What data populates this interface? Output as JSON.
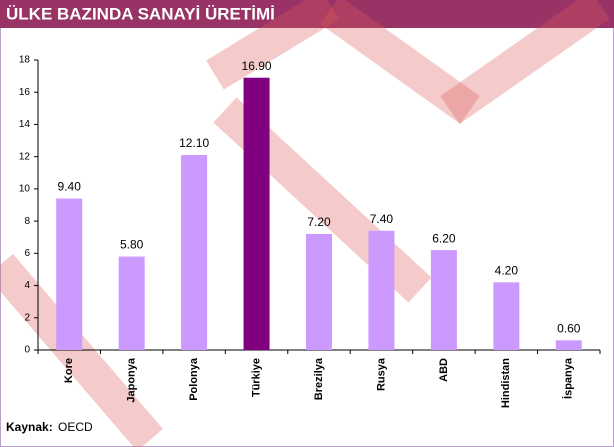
{
  "chart_data": {
    "type": "bar",
    "title": "ÜLKE BAZINDA SANAYİ ÜRETİMİ",
    "categories": [
      "Kore",
      "Japonya",
      "Polonya",
      "Türkiye",
      "Brezilya",
      "Rusya",
      "ABD",
      "Hindistan",
      "İspanya"
    ],
    "values": [
      9.4,
      5.8,
      12.1,
      16.9,
      7.2,
      7.4,
      6.2,
      4.2,
      0.6
    ],
    "value_labels": [
      "9.40",
      "5.80",
      "12.10",
      "16.90",
      "7.20",
      "7.40",
      "6.20",
      "4.20",
      "0.60"
    ],
    "colors": [
      "#cc99ff",
      "#cc99ff",
      "#cc99ff",
      "#800080",
      "#cc99ff",
      "#cc99ff",
      "#cc99ff",
      "#cc99ff",
      "#cc99ff"
    ],
    "ylim": [
      0,
      18
    ],
    "yticks": [
      0,
      2,
      4,
      6,
      8,
      10,
      12,
      14,
      16,
      18
    ]
  },
  "source": {
    "label": "Kaynak:",
    "value": "OECD"
  }
}
